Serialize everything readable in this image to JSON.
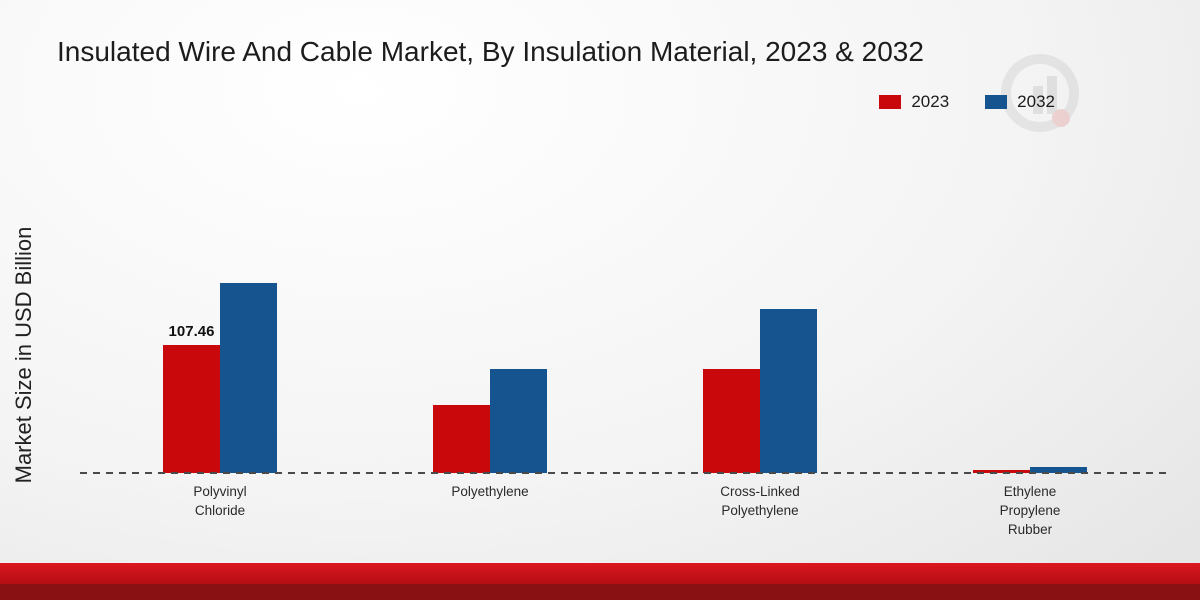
{
  "chart_data": {
    "type": "bar",
    "title": "Insulated Wire And Cable Market, By Insulation Material, 2023 & 2032",
    "xlabel": "",
    "ylabel": "Market Size in USD Billion",
    "categories": [
      "Polyvinyl\nChloride",
      "Polyethylene",
      "Cross-Linked\nPolyethylene",
      "Ethylene\nPropylene\nRubber"
    ],
    "series": [
      {
        "name": "2023",
        "color": "#c9080c",
        "values": [
          107.46,
          57,
          87,
          2.5
        ]
      },
      {
        "name": "2032",
        "color": "#15548e",
        "values": [
          160,
          87,
          138,
          5
        ]
      }
    ],
    "ylim": [
      0,
      170
    ],
    "grid": false,
    "legend_position": "top-right",
    "axis_style": "dashed-baseline-only",
    "data_labels": [
      {
        "series_index": 0,
        "category_index": 0,
        "text": "107.46"
      }
    ]
  },
  "watermark": {
    "name": "brand-logo-watermark"
  }
}
